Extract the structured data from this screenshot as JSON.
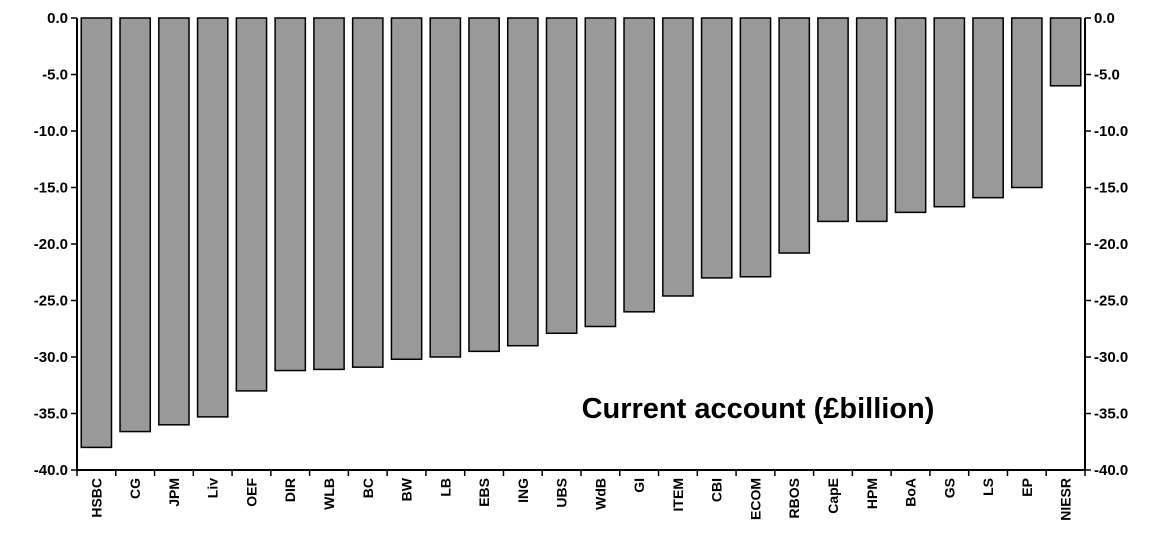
{
  "chart_data": {
    "type": "bar",
    "title": "Current account (£billion)",
    "categories": [
      "HSBC",
      "CG",
      "JPM",
      "Liv",
      "OEF",
      "DIR",
      "WLB",
      "BC",
      "BW",
      "LB",
      "EBS",
      "ING",
      "UBS",
      "WdB",
      "GI",
      "ITEM",
      "CBI",
      "ECOM",
      "RBOS",
      "CapE",
      "HPM",
      "BoA",
      "GS",
      "LS",
      "EP",
      "NIESR"
    ],
    "values": [
      -38.0,
      -36.6,
      -36.0,
      -35.3,
      -33.0,
      -31.2,
      -31.1,
      -30.9,
      -30.2,
      -30.0,
      -29.5,
      -29.0,
      -27.9,
      -27.3,
      -26.0,
      -24.6,
      -23.0,
      -22.9,
      -20.8,
      -18.0,
      -18.0,
      -17.2,
      -16.7,
      -15.9,
      -15.0,
      -6.0
    ],
    "ylim": [
      -40.0,
      0.0
    ],
    "yticks": [
      "0.0",
      "-5.0",
      "-10.0",
      "-15.0",
      "-20.0",
      "-25.0",
      "-30.0",
      "-35.0",
      "-40.0"
    ],
    "ytick_values": [
      0,
      -5,
      -10,
      -15,
      -20,
      -25,
      -30,
      -35,
      -40
    ],
    "bar_color": "#999999",
    "grid": false,
    "axes": "left-and-right"
  }
}
